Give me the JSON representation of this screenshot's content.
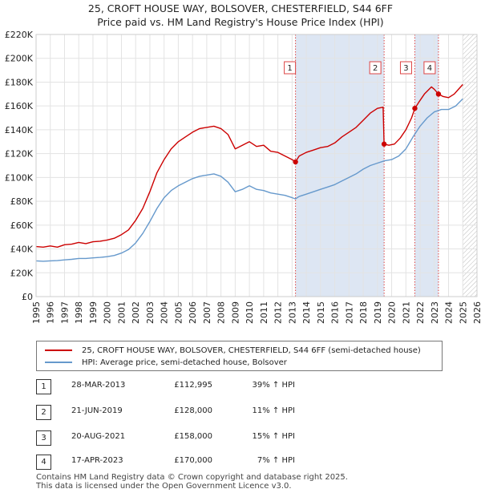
{
  "title_line1": "25, CROFT HOUSE WAY, BOLSOVER, CHESTERFIELD, S44 6FF",
  "title_line2": "Price paid vs. HM Land Registry's House Price Index (HPI)",
  "colors": {
    "price_line": "#cc0000",
    "hpi_line": "#6699cc",
    "shade": "#dde6f3",
    "grid": "#e3e3e3",
    "marker_line": "#dd4444"
  },
  "chart_data": {
    "type": "line",
    "xlim": [
      1995,
      2026
    ],
    "ylim": [
      0,
      220000
    ],
    "y_ticks": [
      {
        "value": 0,
        "label": "£0"
      },
      {
        "value": 20000,
        "label": "£20K"
      },
      {
        "value": 40000,
        "label": "£40K"
      },
      {
        "value": 60000,
        "label": "£60K"
      },
      {
        "value": 80000,
        "label": "£80K"
      },
      {
        "value": 100000,
        "label": "£100K"
      },
      {
        "value": 120000,
        "label": "£120K"
      },
      {
        "value": 140000,
        "label": "£140K"
      },
      {
        "value": 160000,
        "label": "£160K"
      },
      {
        "value": 180000,
        "label": "£180K"
      },
      {
        "value": 200000,
        "label": "£200K"
      },
      {
        "value": 220000,
        "label": "£220K"
      }
    ],
    "x_ticks": [
      "1995",
      "1996",
      "1997",
      "1998",
      "1999",
      "2000",
      "2001",
      "2002",
      "2003",
      "2004",
      "2005",
      "2006",
      "2007",
      "2008",
      "2009",
      "2010",
      "2011",
      "2012",
      "2013",
      "2014",
      "2015",
      "2016",
      "2017",
      "2018",
      "2019",
      "2020",
      "2021",
      "2022",
      "2023",
      "2024",
      "2025",
      "2026"
    ],
    "shaded_ranges": [
      [
        2013.24,
        2019.47
      ],
      [
        2021.63,
        2023.29
      ]
    ],
    "future_hatch_from": 2025.0,
    "series": [
      {
        "name": "25, CROFT HOUSE WAY, BOLSOVER, CHESTERFIELD, S44 6FF (semi-detached house)",
        "color": "#cc0000",
        "points": [
          [
            1995.0,
            42000
          ],
          [
            1995.5,
            41500
          ],
          [
            1996.0,
            42500
          ],
          [
            1996.5,
            41500
          ],
          [
            1997.0,
            43500
          ],
          [
            1997.5,
            44000
          ],
          [
            1998.0,
            45500
          ],
          [
            1998.5,
            44500
          ],
          [
            1999.0,
            46000
          ],
          [
            1999.5,
            46500
          ],
          [
            2000.0,
            47500
          ],
          [
            2000.5,
            49000
          ],
          [
            2001.0,
            52000
          ],
          [
            2001.5,
            56000
          ],
          [
            2002.0,
            64000
          ],
          [
            2002.5,
            74000
          ],
          [
            2003.0,
            88000
          ],
          [
            2003.5,
            104000
          ],
          [
            2004.0,
            115000
          ],
          [
            2004.5,
            124000
          ],
          [
            2005.0,
            130000
          ],
          [
            2005.5,
            134000
          ],
          [
            2006.0,
            138000
          ],
          [
            2006.5,
            141000
          ],
          [
            2007.0,
            142000
          ],
          [
            2007.5,
            143000
          ],
          [
            2008.0,
            141000
          ],
          [
            2008.5,
            136000
          ],
          [
            2009.0,
            124000
          ],
          [
            2009.5,
            127000
          ],
          [
            2010.0,
            130000
          ],
          [
            2010.5,
            126000
          ],
          [
            2011.0,
            127000
          ],
          [
            2011.5,
            122000
          ],
          [
            2012.0,
            121000
          ],
          [
            2012.5,
            118000
          ],
          [
            2013.0,
            115000
          ],
          [
            2013.24,
            112995
          ],
          [
            2013.5,
            118000
          ],
          [
            2014.0,
            121000
          ],
          [
            2014.5,
            123000
          ],
          [
            2015.0,
            125000
          ],
          [
            2015.5,
            126000
          ],
          [
            2016.0,
            129000
          ],
          [
            2016.5,
            134000
          ],
          [
            2017.0,
            138000
          ],
          [
            2017.5,
            142000
          ],
          [
            2018.0,
            148000
          ],
          [
            2018.5,
            154000
          ],
          [
            2019.0,
            158000
          ],
          [
            2019.4,
            159000
          ],
          [
            2019.47,
            128000
          ],
          [
            2019.8,
            127000
          ],
          [
            2020.2,
            128000
          ],
          [
            2020.6,
            133000
          ],
          [
            2021.0,
            140000
          ],
          [
            2021.4,
            150000
          ],
          [
            2021.63,
            158000
          ],
          [
            2021.9,
            163000
          ],
          [
            2022.3,
            170000
          ],
          [
            2022.8,
            176000
          ],
          [
            2023.0,
            174000
          ],
          [
            2023.29,
            170000
          ],
          [
            2023.6,
            168000
          ],
          [
            2024.0,
            167000
          ],
          [
            2024.4,
            170000
          ],
          [
            2024.7,
            174000
          ],
          [
            2025.0,
            178000
          ]
        ]
      },
      {
        "name": "HPI: Average price, semi-detached house, Bolsover",
        "color": "#6699cc",
        "points": [
          [
            1995.0,
            30000
          ],
          [
            1995.5,
            29700
          ],
          [
            1996.0,
            30000
          ],
          [
            1996.5,
            30200
          ],
          [
            1997.0,
            30800
          ],
          [
            1997.5,
            31300
          ],
          [
            1998.0,
            32000
          ],
          [
            1998.5,
            32000
          ],
          [
            1999.0,
            32500
          ],
          [
            1999.5,
            32900
          ],
          [
            2000.0,
            33500
          ],
          [
            2000.5,
            34500
          ],
          [
            2001.0,
            36500
          ],
          [
            2001.5,
            39500
          ],
          [
            2002.0,
            45000
          ],
          [
            2002.5,
            53000
          ],
          [
            2003.0,
            63000
          ],
          [
            2003.5,
            74000
          ],
          [
            2004.0,
            83000
          ],
          [
            2004.5,
            89000
          ],
          [
            2005.0,
            93000
          ],
          [
            2005.5,
            96000
          ],
          [
            2006.0,
            99000
          ],
          [
            2006.5,
            101000
          ],
          [
            2007.0,
            102000
          ],
          [
            2007.5,
            103000
          ],
          [
            2008.0,
            101000
          ],
          [
            2008.5,
            96000
          ],
          [
            2009.0,
            88000
          ],
          [
            2009.5,
            90000
          ],
          [
            2010.0,
            93000
          ],
          [
            2010.5,
            90000
          ],
          [
            2011.0,
            89000
          ],
          [
            2011.5,
            87000
          ],
          [
            2012.0,
            86000
          ],
          [
            2012.5,
            85000
          ],
          [
            2013.0,
            83000
          ],
          [
            2013.24,
            82000
          ],
          [
            2013.5,
            84000
          ],
          [
            2014.0,
            86000
          ],
          [
            2014.5,
            88000
          ],
          [
            2015.0,
            90000
          ],
          [
            2015.5,
            92000
          ],
          [
            2016.0,
            94000
          ],
          [
            2016.5,
            97000
          ],
          [
            2017.0,
            100000
          ],
          [
            2017.5,
            103000
          ],
          [
            2018.0,
            107000
          ],
          [
            2018.5,
            110000
          ],
          [
            2019.0,
            112000
          ],
          [
            2019.5,
            114000
          ],
          [
            2020.0,
            115000
          ],
          [
            2020.5,
            118000
          ],
          [
            2021.0,
            124000
          ],
          [
            2021.5,
            134000
          ],
          [
            2022.0,
            143000
          ],
          [
            2022.5,
            150000
          ],
          [
            2023.0,
            155000
          ],
          [
            2023.5,
            157000
          ],
          [
            2024.0,
            157000
          ],
          [
            2024.5,
            160000
          ],
          [
            2025.0,
            166000
          ]
        ]
      }
    ],
    "sale_markers": [
      {
        "label": "1",
        "x": 2013.24,
        "y": 112995
      },
      {
        "label": "2",
        "x": 2019.47,
        "y": 128000
      },
      {
        "label": "3",
        "x": 2021.63,
        "y": 158000
      },
      {
        "label": "4",
        "x": 2023.29,
        "y": 170000
      }
    ]
  },
  "legend": {
    "price_label": "25, CROFT HOUSE WAY, BOLSOVER, CHESTERFIELD, S44 6FF (semi-detached house)",
    "hpi_label": "HPI: Average price, semi-detached house, Bolsover"
  },
  "sales": [
    {
      "num": "1",
      "date": "28-MAR-2013",
      "price": "£112,995",
      "hpi": "39% ↑ HPI"
    },
    {
      "num": "2",
      "date": "21-JUN-2019",
      "price": "£128,000",
      "hpi": "11% ↑ HPI"
    },
    {
      "num": "3",
      "date": "20-AUG-2021",
      "price": "£158,000",
      "hpi": "15% ↑ HPI"
    },
    {
      "num": "4",
      "date": "17-APR-2023",
      "price": "£170,000",
      "hpi": "7% ↑ HPI"
    }
  ],
  "footer_line1": "Contains HM Land Registry data © Crown copyright and database right 2025.",
  "footer_line2": "This data is licensed under the Open Government Licence v3.0."
}
